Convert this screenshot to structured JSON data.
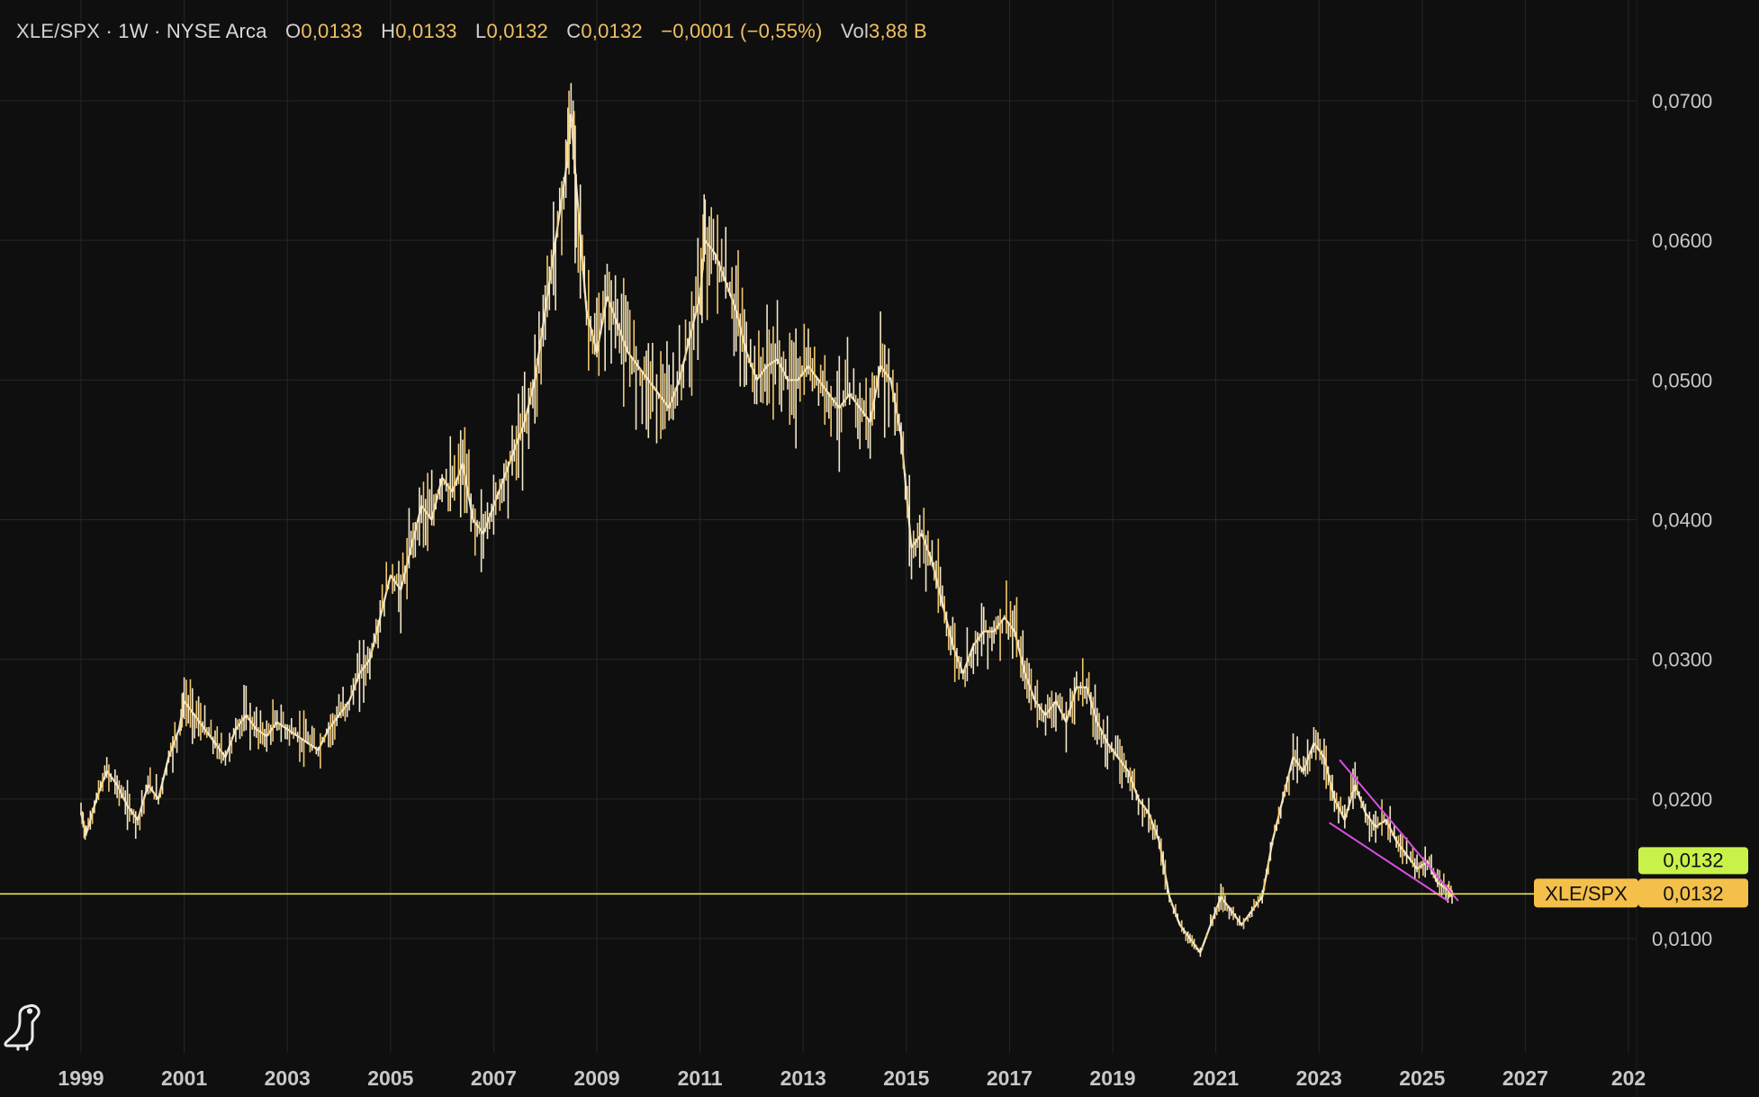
{
  "header": {
    "symbol": "XLE/SPX",
    "interval": "1W",
    "exchange": "NYSE Arca",
    "open_label": "O",
    "open": "0,0133",
    "high_label": "H",
    "high": "0,0133",
    "low_label": "L",
    "low": "0,0132",
    "close_label": "C",
    "close": "0,0132",
    "change": "−0,0001 (−0,55%)",
    "vol_label": "Vol",
    "vol": "3,88 B"
  },
  "icons": {
    "logo": "dinosaur-logo-icon"
  },
  "colors": {
    "background": "#0f0f0f",
    "grid": "#262626",
    "candle": "#f3e7c8",
    "price_line": "#e8e35a",
    "trendline": "#d94fe0",
    "last_price_tag": "#c8f24a",
    "symbol_tag": "#f4c04a",
    "axis_text": "#c8c8c8"
  },
  "chart_data": {
    "type": "line",
    "title": "",
    "xlabel": "",
    "ylabel": "",
    "ylim": [
      0.0,
      0.072
    ],
    "x_ticks": [
      "1999",
      "2001",
      "2003",
      "2005",
      "2007",
      "2009",
      "2011",
      "2013",
      "2015",
      "2017",
      "2019",
      "2021",
      "2023",
      "2025",
      "2027",
      "202"
    ],
    "y_ticks": [
      "0,0700",
      "0,0600",
      "0,0500",
      "0,0400",
      "0,0300",
      "0,0200",
      "0,0100"
    ],
    "y_tick_values": [
      0.07,
      0.06,
      0.05,
      0.04,
      0.03,
      0.02,
      0.01
    ],
    "grid": true,
    "series": [
      {
        "x": [
          1999.0,
          1999.1,
          1999.3,
          1999.5,
          1999.7,
          1999.9,
          2000.1,
          2000.3,
          2000.5,
          2000.7,
          2000.9,
          2001.0,
          2001.2,
          2001.4,
          2001.6,
          2001.8,
          2002.0,
          2002.2,
          2002.4,
          2002.6,
          2002.8,
          2003.0,
          2003.2,
          2003.4,
          2003.6,
          2003.8,
          2004.0,
          2004.2,
          2004.4,
          2004.6,
          2004.8,
          2005.0,
          2005.2,
          2005.4,
          2005.6,
          2005.8,
          2006.0,
          2006.2,
          2006.4,
          2006.6,
          2006.8,
          2007.0,
          2007.2,
          2007.4,
          2007.6,
          2007.8,
          2008.0,
          2008.2,
          2008.4,
          2008.5,
          2008.6,
          2008.8,
          2009.0,
          2009.2,
          2009.4,
          2009.6,
          2009.8,
          2010.0,
          2010.2,
          2010.4,
          2010.6,
          2010.8,
          2011.0,
          2011.1,
          2011.3,
          2011.5,
          2011.7,
          2011.9,
          2012.1,
          2012.3,
          2012.5,
          2012.7,
          2012.9,
          2013.1,
          2013.3,
          2013.5,
          2013.7,
          2013.9,
          2014.1,
          2014.3,
          2014.5,
          2014.7,
          2014.9,
          2015.1,
          2015.3,
          2015.5,
          2015.7,
          2015.9,
          2016.1,
          2016.3,
          2016.5,
          2016.7,
          2016.9,
          2017.1,
          2017.3,
          2017.5,
          2017.7,
          2017.9,
          2018.1,
          2018.3,
          2018.5,
          2018.7,
          2018.9,
          2019.1,
          2019.3,
          2019.5,
          2019.7,
          2019.9,
          2020.1,
          2020.3,
          2020.5,
          2020.7,
          2020.9,
          2021.1,
          2021.3,
          2021.5,
          2021.7,
          2021.9,
          2022.1,
          2022.3,
          2022.5,
          2022.7,
          2022.9,
          2023.1,
          2023.3,
          2023.5,
          2023.7,
          2023.9,
          2024.1,
          2024.3,
          2024.5,
          2024.7,
          2024.9,
          2025.1,
          2025.3,
          2025.5,
          2025.6
        ],
        "values": [
          0.019,
          0.0175,
          0.02,
          0.022,
          0.021,
          0.0195,
          0.0185,
          0.021,
          0.02,
          0.023,
          0.025,
          0.027,
          0.026,
          0.025,
          0.024,
          0.023,
          0.025,
          0.026,
          0.025,
          0.0245,
          0.0255,
          0.025,
          0.0245,
          0.024,
          0.0235,
          0.025,
          0.026,
          0.027,
          0.029,
          0.03,
          0.033,
          0.036,
          0.035,
          0.038,
          0.041,
          0.04,
          0.043,
          0.042,
          0.044,
          0.04,
          0.039,
          0.041,
          0.043,
          0.045,
          0.047,
          0.05,
          0.055,
          0.06,
          0.065,
          0.069,
          0.064,
          0.055,
          0.052,
          0.056,
          0.054,
          0.052,
          0.051,
          0.05,
          0.049,
          0.048,
          0.05,
          0.053,
          0.056,
          0.06,
          0.059,
          0.057,
          0.055,
          0.052,
          0.05,
          0.051,
          0.0515,
          0.05,
          0.05,
          0.051,
          0.05,
          0.049,
          0.048,
          0.049,
          0.048,
          0.047,
          0.051,
          0.05,
          0.046,
          0.038,
          0.039,
          0.037,
          0.034,
          0.031,
          0.029,
          0.031,
          0.032,
          0.032,
          0.033,
          0.032,
          0.029,
          0.027,
          0.026,
          0.027,
          0.0255,
          0.028,
          0.028,
          0.0255,
          0.024,
          0.023,
          0.022,
          0.02,
          0.019,
          0.017,
          0.013,
          0.011,
          0.01,
          0.009,
          0.011,
          0.013,
          0.012,
          0.011,
          0.012,
          0.013,
          0.017,
          0.02,
          0.023,
          0.022,
          0.024,
          0.023,
          0.02,
          0.0185,
          0.021,
          0.019,
          0.018,
          0.0185,
          0.017,
          0.016,
          0.015,
          0.0155,
          0.014,
          0.0135,
          0.0132
        ]
      }
    ],
    "trendlines": [
      {
        "x": [
          2023.4,
          2025.7
        ],
        "y": [
          0.0228,
          0.0127
        ]
      },
      {
        "x": [
          2023.2,
          2025.5
        ],
        "y": [
          0.0183,
          0.0127
        ]
      }
    ],
    "horizontal_line": 0.0132,
    "last_price_label": "0,0132",
    "symbol_tag_label": "XLE/SPX",
    "symbol_tag_value": "0,0132"
  }
}
